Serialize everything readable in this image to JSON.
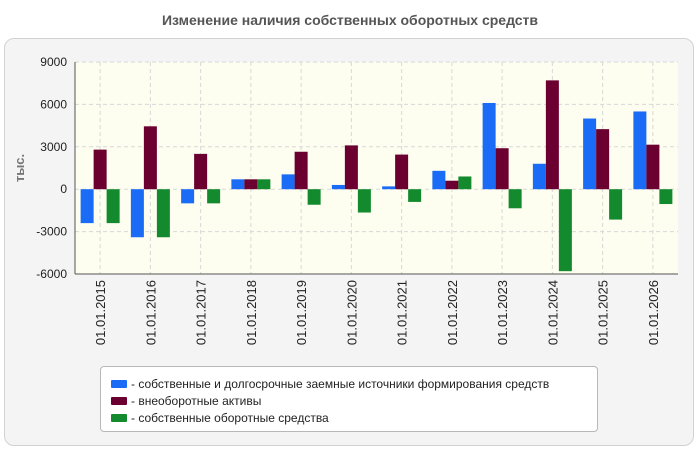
{
  "chart_data": {
    "type": "bar",
    "title": "Изменение наличия собственных оборотных средств",
    "ylabel": "тыс.",
    "xlabel": "",
    "ylim": [
      -6000,
      9000
    ],
    "yticks": [
      9000,
      6000,
      3000,
      0,
      -3000,
      -6000
    ],
    "grid": true,
    "legend_position": "bottom",
    "categories": [
      "01.01.2015",
      "01.01.2016",
      "01.01.2017",
      "01.01.2018",
      "01.01.2019",
      "01.01.2020",
      "01.01.2021",
      "01.01.2022",
      "01.01.2023",
      "01.01.2024",
      "01.01.2025",
      "01.01.2026"
    ],
    "series": [
      {
        "name": "- собственные и долгосрочные заемные источники формирования средств",
        "color": "#1a6bf5",
        "values": [
          -2400,
          -3400,
          -1000,
          700,
          1050,
          300,
          200,
          1300,
          6100,
          1800,
          5000,
          5500
        ]
      },
      {
        "name": "- внеоборотные активы",
        "color": "#6b0030",
        "values": [
          2800,
          4450,
          2500,
          700,
          2650,
          3100,
          2450,
          600,
          2900,
          7700,
          4250,
          3150
        ]
      },
      {
        "name": "- собственные оборотные средства",
        "color": "#138a2e",
        "values": [
          -2400,
          -3400,
          -1000,
          700,
          -1100,
          -1650,
          -900,
          900,
          -1350,
          -5800,
          -2150,
          -1050
        ]
      }
    ]
  }
}
